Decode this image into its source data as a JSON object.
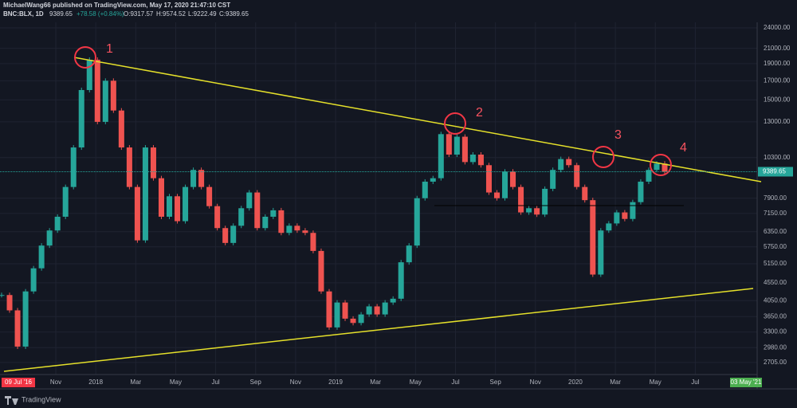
{
  "header": {
    "publisher": "MichaelWang66 published on TradingView.com, May 17, 2020 21:47:10 CST",
    "symbol": "BNC:BLX, 1D",
    "last": "9389.65",
    "change": "+78.58 (+0.84%)",
    "open": "O:9317.57",
    "high": "H:9574.52",
    "low": "L:9222.49",
    "close": "C:9389.65"
  },
  "footer": "TradingView",
  "chart_data": {
    "type": "candlestick",
    "log_scale": true,
    "grid": true,
    "ylim": [
      2500,
      24890
    ],
    "yticks": [
      {
        "value": 24000,
        "label": "24000.00"
      },
      {
        "value": 21000,
        "label": "21000.00"
      },
      {
        "value": 19000,
        "label": "19000.00"
      },
      {
        "value": 17000,
        "label": "17000.00"
      },
      {
        "value": 15000,
        "label": "15000.00"
      },
      {
        "value": 13000,
        "label": "13000.00"
      },
      {
        "value": 10300,
        "label": "10300.00"
      },
      {
        "value": 7900,
        "label": "7900.00"
      },
      {
        "value": 7150,
        "label": "7150.00"
      },
      {
        "value": 6350,
        "label": "6350.00"
      },
      {
        "value": 5750,
        "label": "5750.00"
      },
      {
        "value": 5150,
        "label": "5150.00"
      },
      {
        "value": 4550,
        "label": "4550.00"
      },
      {
        "value": 4050,
        "label": "4050.00"
      },
      {
        "value": 3650,
        "label": "3650.00"
      },
      {
        "value": 3300,
        "label": "3300.00"
      },
      {
        "value": 2980,
        "label": "2980.00"
      },
      {
        "value": 2705,
        "label": "2705.00"
      }
    ],
    "x_labels": [
      "Nov",
      "2018",
      "Mar",
      "May",
      "Jul",
      "Sep",
      "Nov",
      "2019",
      "Mar",
      "May",
      "Jul",
      "Sep",
      "Nov",
      "2020",
      "Mar",
      "May",
      "Jul"
    ],
    "start_label": "09 Jul '16",
    "end_label": "03 May '21",
    "annotations": [
      "1",
      "2",
      "3",
      "4"
    ],
    "up_color": "#26a69a",
    "down_color": "#ef5350",
    "series": [
      {
        "name": "BNC:BLX",
        "color": "#26a69a",
        "values": [
          4200,
          3800,
          3000,
          4300,
          5000,
          5800,
          6400,
          7000,
          8500,
          11000,
          16000,
          19500,
          13000,
          17000,
          14000,
          11000,
          8500,
          6000,
          11000,
          9000,
          7000,
          8000,
          6800,
          8500,
          9500,
          8500,
          7500,
          6500,
          5900,
          6600,
          7400,
          8200,
          6500,
          7000,
          7300,
          6300,
          6600,
          6400,
          6300,
          5600,
          4300,
          3400,
          4000,
          3600,
          3500,
          3700,
          3900,
          3700,
          4000,
          4100,
          5200,
          5800,
          7900,
          8800,
          9000,
          12000,
          10500,
          11800,
          10000,
          10500,
          9800,
          8200,
          7900,
          9400,
          8500,
          7200,
          7400,
          7100,
          8400,
          9500,
          10200,
          9800,
          8500,
          7800,
          4800,
          6400,
          6700,
          7200,
          6900,
          7700,
          8800,
          9500,
          9900,
          9389.65
        ]
      }
    ]
  }
}
